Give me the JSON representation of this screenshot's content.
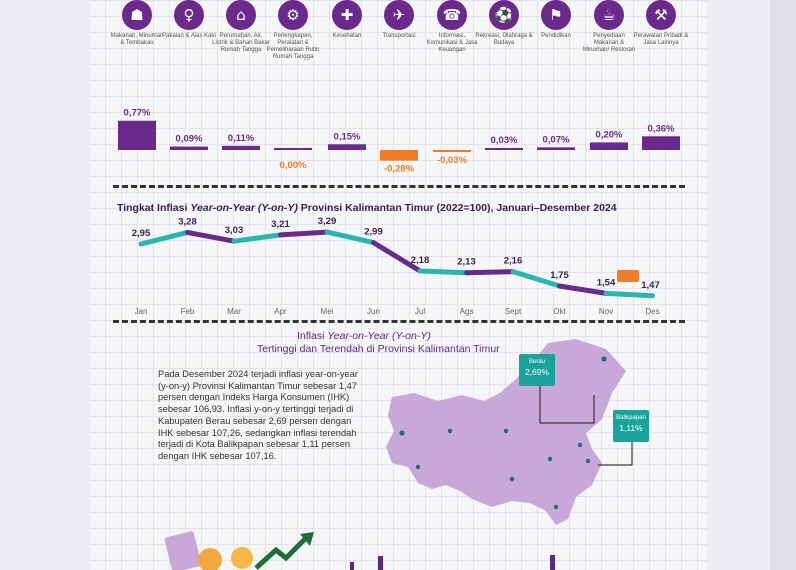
{
  "colors": {
    "purple": "#6a2a8c",
    "teal": "#2bb5b1",
    "orange": "#f07c2a",
    "map": "#c7a8d8",
    "label_bg": "#1aa39b"
  },
  "categories": [
    {
      "icon": "basket-icon",
      "label": "Makanan, Minuman & Tembakau"
    },
    {
      "icon": "dress-icon",
      "label": "Pakaian & Alas Kaki"
    },
    {
      "icon": "house-icon",
      "label": "Perumahan, Air, Listrik & Bahan Bakar Rumah Tangga"
    },
    {
      "icon": "household-equipment-icon",
      "label": "Perlengkapan, Peralatan & Pemeliharaan Rutin Rumah Tangga"
    },
    {
      "icon": "medical-kit-icon",
      "label": "Kesehatan"
    },
    {
      "icon": "airplane-icon",
      "label": "Transportasi"
    },
    {
      "icon": "phone-icon",
      "label": "Informasi, Komunikasi & Jasa Keuangan"
    },
    {
      "icon": "sport-icon",
      "label": "Rekreasi, Olahraga & Budaya"
    },
    {
      "icon": "graduation-cap-icon",
      "label": "Pendidikan"
    },
    {
      "icon": "restaurant-icon",
      "label": "Penyediaan Makanan & Minuman/ Restoran"
    },
    {
      "icon": "tools-icon",
      "label": "Perawatan Pribadi & Jasa Lainnya"
    }
  ],
  "chart_data": [
    {
      "type": "bar",
      "categories": [
        "Makanan, Minuman & Tembakau",
        "Pakaian & Alas Kaki",
        "Perumahan, Air, Listrik & Bahan Bakar Rumah Tangga",
        "Perlengkapan, Peralatan & Pemeliharaan Rutin Rumah Tangga",
        "Kesehatan",
        "Transportasi",
        "Informasi, Komunikasi & Jasa Keuangan",
        "Rekreasi, Olahraga & Budaya",
        "Pendidikan",
        "Penyediaan Makanan & Minuman/ Restoran",
        "Perawatan Pribadi & Jasa Lainnya"
      ],
      "values": [
        0.77,
        0.09,
        0.11,
        0.0,
        0.15,
        -0.28,
        -0.03,
        0.03,
        0.07,
        0.2,
        0.36
      ],
      "labels": [
        "0,77%",
        "0,09%",
        "0,11%",
        "0,00%",
        "0,15%",
        "-0,28%",
        "-0,03%",
        "0,03%",
        "0,07%",
        "0,20%",
        "0,36%"
      ]
    },
    {
      "type": "line",
      "title": "Tingkat Inflasi Year-on-Year (Y-on-Y) Provinsi Kalimantan Timur (2022=100), Januari–Desember 2024",
      "title_parts": {
        "a": "Tingkat Inflasi ",
        "b": "Year-on-Year (Y-on-Y)",
        "c": " Provinsi Kalimantan Timur (2022=100), Januari–Desember 2024"
      },
      "x": [
        "Jan",
        "Feb",
        "Mar",
        "Apr",
        "Mei",
        "Jun",
        "Jul",
        "Ags",
        "Sept",
        "Okt",
        "Nov",
        "Des"
      ],
      "values": [
        2.95,
        3.28,
        3.03,
        3.21,
        3.29,
        2.99,
        2.18,
        2.13,
        2.16,
        1.75,
        1.54,
        1.47
      ],
      "labels": [
        "2,95",
        "3,28",
        "3,03",
        "3,21",
        "3,29",
        "2,99",
        "2,18",
        "2,13",
        "2,16",
        "1,75",
        "1,54",
        "1,47"
      ]
    }
  ],
  "map_section": {
    "title_parts": {
      "a": "Inflasi ",
      "b": "Year-on-Year (Y-on-Y)"
    },
    "title_line2": "Tertinggi dan Terendah di Provinsi Kalimantan Timur",
    "paragraph": "Pada Desember 2024 terjadi inflasi year-on-year (y-on-y) Provinsi Kalimantan Timur sebesar 1,47 persen dengan Indeks Harga Konsumen (IHK) sebesar 106,93. Inflasi y-on-y tertinggi terjadi di Kabupaten Berau sebesar 2,69 persen dengan IHK sebesar 107,26, sedangkan inflasi terendah terjadi di Kota Balikpapan sebesar 1,11 persen dengan IHK sebesar 107,16.",
    "callouts": [
      {
        "name": "Berau",
        "value": "2,69%"
      },
      {
        "name": "Balikpapan",
        "value": "1,11%"
      }
    ]
  }
}
